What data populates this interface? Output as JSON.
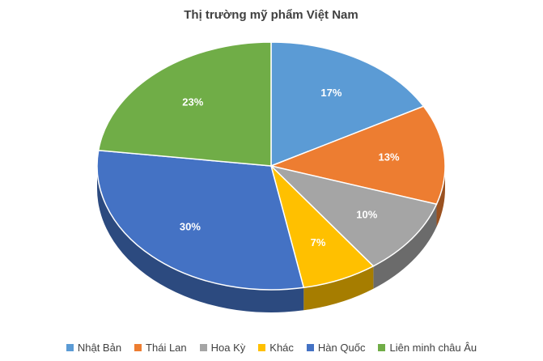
{
  "chart_data": {
    "type": "pie3d",
    "title": "Thị trường mỹ phẩm Việt Nam",
    "categories": [
      "Nhật Bản",
      "Thái Lan",
      "Hoa Kỳ",
      "Khác",
      "Hàn Quốc",
      "Liên minh châu Âu"
    ],
    "values": [
      17,
      13,
      10,
      7,
      30,
      23
    ],
    "value_labels": [
      "17%",
      "13%",
      "10%",
      "7%",
      "30%",
      "23%"
    ],
    "colors": [
      "#5b9bd5",
      "#ed7d31",
      "#a5a5a5",
      "#ffc000",
      "#4472c4",
      "#70ad47"
    ],
    "legend": "bottom"
  }
}
